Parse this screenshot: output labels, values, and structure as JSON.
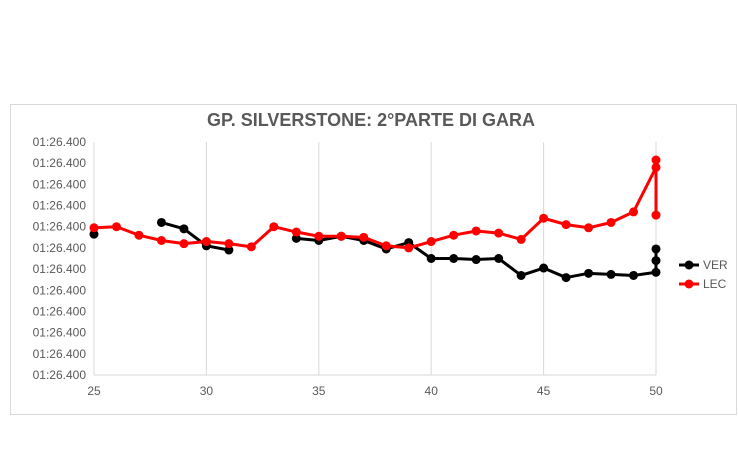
{
  "chart_data": {
    "type": "line",
    "title": "GP. SILVERSTONE: 2°PARTE DI GARA",
    "xlabel": "",
    "ylabel": "",
    "xlim": [
      25,
      50
    ],
    "x_ticks": [
      "25",
      "30",
      "35",
      "40",
      "45",
      "50"
    ],
    "y_tick_labels": [
      "01:26.400",
      "01:26.400",
      "01:26.400",
      "01:26.400",
      "01:26.400",
      "01:26.400",
      "01:26.400",
      "01:26.400",
      "01:26.400",
      "01:26.400",
      "01:26.400",
      "01:26.400"
    ],
    "ylim": [
      0,
      11
    ],
    "grid": "vertical",
    "legend_position": "right",
    "series": [
      {
        "name": "VER",
        "color": "#000000",
        "segments": [
          [
            [
              25,
              6.65
            ]
          ],
          [
            [
              28,
              7.2
            ],
            [
              29,
              6.9
            ],
            [
              30,
              6.1
            ],
            [
              31,
              5.9
            ]
          ],
          [
            [
              34,
              6.45
            ],
            [
              35,
              6.35
            ],
            [
              36,
              6.55
            ],
            [
              37,
              6.35
            ],
            [
              38,
              5.95
            ],
            [
              39,
              6.25
            ],
            [
              40,
              5.5
            ],
            [
              41,
              5.5
            ],
            [
              42,
              5.45
            ],
            [
              43,
              5.5
            ],
            [
              44,
              4.7
            ],
            [
              45,
              5.05
            ],
            [
              46,
              4.6
            ],
            [
              47,
              4.8
            ],
            [
              48,
              4.75
            ],
            [
              49,
              4.7
            ],
            [
              50,
              4.85
            ],
            [
              50,
              5.4
            ],
            [
              50,
              5.95
            ]
          ]
        ]
      },
      {
        "name": "LEC",
        "color": "#ff0000",
        "segments": [
          [
            [
              25,
              6.95
            ],
            [
              26,
              7.0
            ],
            [
              27,
              6.6
            ],
            [
              28,
              6.35
            ],
            [
              29,
              6.2
            ],
            [
              30,
              6.3
            ],
            [
              31,
              6.2
            ],
            [
              32,
              6.05
            ],
            [
              33,
              7.0
            ],
            [
              34,
              6.75
            ],
            [
              35,
              6.55
            ],
            [
              36,
              6.55
            ],
            [
              37,
              6.5
            ],
            [
              38,
              6.1
            ],
            [
              39,
              6.0
            ],
            [
              40,
              6.3
            ],
            [
              41,
              6.6
            ],
            [
              42,
              6.8
            ],
            [
              43,
              6.7
            ],
            [
              44,
              6.4
            ],
            [
              45,
              7.4
            ],
            [
              46,
              7.1
            ],
            [
              47,
              6.95
            ],
            [
              48,
              7.2
            ],
            [
              49,
              7.7
            ],
            [
              50,
              9.8
            ],
            [
              50,
              10.15
            ],
            [
              50,
              7.55
            ]
          ]
        ]
      }
    ]
  }
}
